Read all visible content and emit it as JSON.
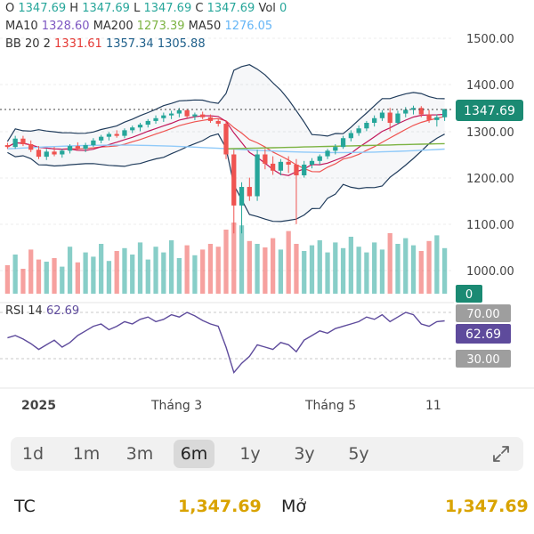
{
  "ohlc": {
    "o_label": "O",
    "o_value": "1347.69",
    "h_label": "H",
    "h_value": "1347.69",
    "l_label": "L",
    "l_value": "1347.69",
    "c_label": "C",
    "c_value": "1347.69",
    "vol_label": "Vol",
    "vol_value": "0"
  },
  "ma": {
    "ma10_label": "MA10",
    "ma10_value": "1328.60",
    "ma200_label": "MA200",
    "ma200_value": "1273.39",
    "ma50_label": "MA50",
    "ma50_value": "1276.05"
  },
  "bb": {
    "label": "BB 20 2",
    "mid": "1331.61",
    "upper": "1357.34",
    "lower": "1305.88"
  },
  "rsi": {
    "label": "RSI 14",
    "value": "62.69"
  },
  "price_badge": "1347.69",
  "volume_badge": "0",
  "rsi_levels": {
    "upper": "70.00",
    "lower": "30.00"
  },
  "time_labels": [
    "2025",
    "Tháng 3",
    "Tháng 5",
    "11"
  ],
  "periods": [
    "1d",
    "1m",
    "3m",
    "6m",
    "1y",
    "3y",
    "5y"
  ],
  "active_period": "6m",
  "stats": {
    "tc_label": "TC",
    "tc_value": "1,347.69",
    "open_label": "Mở",
    "open_value": "1,347.69"
  },
  "colors": {
    "up": "#26a69a",
    "down": "#ef5350",
    "ma10": "#c2185b",
    "ma200": "#7cb342",
    "ma50": "#90caf9",
    "bb": "#1f3b5b",
    "rsi": "#5e4b9c",
    "badge": "#1b8a73"
  },
  "chart_data": {
    "type": "candlestick",
    "price_axis": {
      "ticks": [
        1000,
        1100,
        1200,
        1300,
        1400,
        1500
      ],
      "range": [
        940,
        1600
      ]
    },
    "rsi_axis": {
      "ticks": [
        30,
        70
      ],
      "range": [
        0,
        100
      ]
    },
    "x_labels": [
      "2025",
      "Tháng 3",
      "Tháng 5",
      "11"
    ],
    "candles_approx": [
      [
        1270,
        1275,
        1262,
        1266
      ],
      [
        1266,
        1290,
        1262,
        1284
      ],
      [
        1284,
        1290,
        1268,
        1272
      ],
      [
        1272,
        1280,
        1255,
        1260
      ],
      [
        1260,
        1268,
        1240,
        1245
      ],
      [
        1245,
        1262,
        1238,
        1256
      ],
      [
        1256,
        1266,
        1246,
        1250
      ],
      [
        1250,
        1262,
        1243,
        1258
      ],
      [
        1258,
        1272,
        1252,
        1268
      ],
      [
        1268,
        1276,
        1258,
        1262
      ],
      [
        1262,
        1275,
        1255,
        1270
      ],
      [
        1270,
        1285,
        1266,
        1280
      ],
      [
        1280,
        1292,
        1274,
        1288
      ],
      [
        1288,
        1298,
        1280,
        1294
      ],
      [
        1294,
        1302,
        1286,
        1290
      ],
      [
        1290,
        1306,
        1285,
        1302
      ],
      [
        1302,
        1312,
        1296,
        1308
      ],
      [
        1308,
        1318,
        1300,
        1314
      ],
      [
        1314,
        1326,
        1308,
        1322
      ],
      [
        1322,
        1334,
        1316,
        1328
      ],
      [
        1328,
        1340,
        1320,
        1334
      ],
      [
        1334,
        1344,
        1326,
        1338
      ],
      [
        1338,
        1350,
        1330,
        1345
      ],
      [
        1345,
        1348,
        1328,
        1332
      ],
      [
        1332,
        1340,
        1324,
        1336
      ],
      [
        1336,
        1342,
        1326,
        1330
      ],
      [
        1330,
        1336,
        1318,
        1322
      ],
      [
        1322,
        1328,
        1310,
        1316
      ],
      [
        1316,
        1322,
        1240,
        1250
      ],
      [
        1250,
        1260,
        1080,
        1140
      ],
      [
        1140,
        1190,
        1080,
        1180
      ],
      [
        1180,
        1200,
        1150,
        1160
      ],
      [
        1160,
        1260,
        1150,
        1250
      ],
      [
        1250,
        1262,
        1218,
        1230
      ],
      [
        1230,
        1246,
        1206,
        1215
      ],
      [
        1215,
        1240,
        1205,
        1234
      ],
      [
        1234,
        1246,
        1210,
        1228
      ],
      [
        1228,
        1240,
        1100,
        1205
      ],
      [
        1205,
        1236,
        1200,
        1228
      ],
      [
        1228,
        1242,
        1220,
        1236
      ],
      [
        1236,
        1250,
        1228,
        1246
      ],
      [
        1246,
        1262,
        1240,
        1258
      ],
      [
        1258,
        1272,
        1250,
        1266
      ],
      [
        1266,
        1290,
        1262,
        1285
      ],
      [
        1285,
        1302,
        1278,
        1296
      ],
      [
        1296,
        1312,
        1290,
        1306
      ],
      [
        1306,
        1322,
        1300,
        1318
      ],
      [
        1318,
        1334,
        1310,
        1328
      ],
      [
        1328,
        1345,
        1322,
        1340
      ],
      [
        1340,
        1350,
        1300,
        1318
      ],
      [
        1318,
        1344,
        1314,
        1338
      ],
      [
        1338,
        1352,
        1330,
        1346
      ],
      [
        1346,
        1355,
        1336,
        1350
      ],
      [
        1350,
        1354,
        1330,
        1336
      ],
      [
        1336,
        1346,
        1318,
        1324
      ],
      [
        1324,
        1336,
        1310,
        1330
      ],
      [
        1330,
        1348,
        1322,
        1347.69
      ]
    ],
    "volume_approx": [
      40,
      55,
      35,
      62,
      48,
      45,
      50,
      38,
      66,
      44,
      58,
      52,
      70,
      46,
      60,
      64,
      55,
      72,
      48,
      66,
      58,
      75,
      50,
      68,
      54,
      62,
      70,
      66,
      90,
      100,
      96,
      74,
      70,
      65,
      78,
      62,
      88,
      70,
      60,
      68,
      75,
      58,
      72,
      64,
      80,
      66,
      58,
      72,
      62,
      85,
      70,
      78,
      68,
      60,
      74,
      82,
      64
    ],
    "rsi_approx": [
      48,
      50,
      47,
      43,
      38,
      42,
      46,
      40,
      44,
      50,
      54,
      58,
      60,
      55,
      58,
      62,
      60,
      64,
      66,
      62,
      64,
      68,
      66,
      70,
      67,
      63,
      60,
      58,
      40,
      18,
      26,
      32,
      42,
      40,
      38,
      44,
      42,
      36,
      46,
      50,
      54,
      52,
      56,
      58,
      60,
      62,
      66,
      64,
      68,
      62,
      66,
      70,
      68,
      60,
      58,
      62,
      62.69
    ]
  }
}
